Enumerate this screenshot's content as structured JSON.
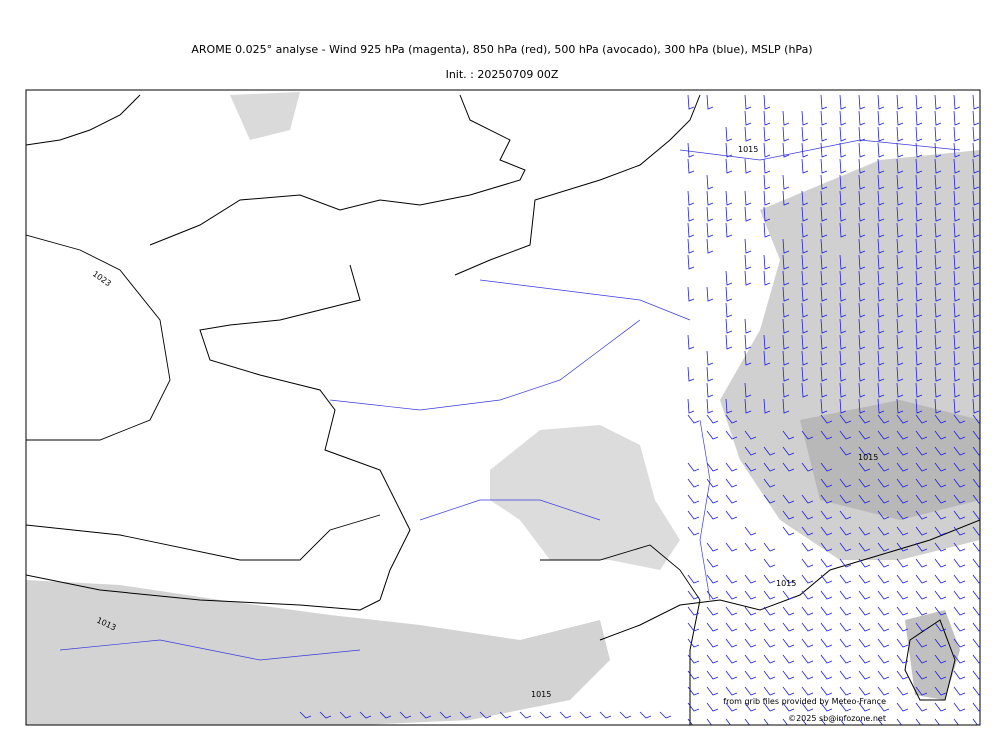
{
  "header": {
    "title": "AROME 0.025° analyse - Wind 925 hPa (magenta), 850 hPa (red), 500 hPa (avocado), 300 hPa (blue), MSLP (hPa)",
    "subtitle": "Init. : 20250709 00Z"
  },
  "map": {
    "isobar_labels": [
      "1023",
      "1015",
      "1015",
      "1013",
      "1015",
      "1015"
    ],
    "credits": [
      "from grib files provided by Meteo-France",
      "©2025 sb@infozone.net"
    ]
  }
}
